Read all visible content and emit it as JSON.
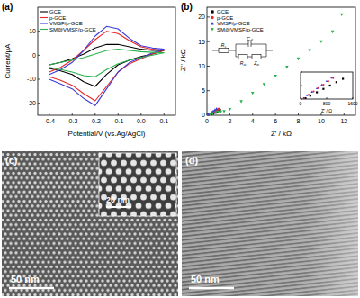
{
  "chart_data": [
    {
      "type": "line",
      "title": "(a)",
      "x_label": "Potential/V (vs.Ag/AgCl)",
      "y_label": "Current/μA",
      "x": [
        -0.4,
        -0.35,
        -0.3,
        -0.25,
        -0.2,
        -0.15,
        -0.1,
        -0.05,
        0,
        0.05,
        0.1,
        0.05,
        0,
        -0.05,
        -0.1,
        -0.15,
        -0.2,
        -0.25,
        -0.3,
        -0.35,
        -0.4
      ],
      "xlim": [
        -0.45,
        0.15
      ],
      "xticks": [
        -0.4,
        -0.3,
        -0.2,
        -0.1,
        {
          "value": 0,
          "label": "0.0"
        },
        0.1
      ],
      "ylim": [
        -25,
        20
      ],
      "yticks": [
        -20,
        -10,
        0,
        10
      ],
      "legend": "upper left",
      "series": [
        {
          "name": "GCE",
          "color": "#000000",
          "values": [
            -4,
            -3,
            -1.5,
            0.5,
            3,
            4.5,
            4.5,
            3.5,
            2.5,
            2,
            2,
            0.5,
            -0.5,
            -2,
            -4,
            -8,
            -13,
            -11,
            -8,
            -6.5,
            -5.5
          ]
        },
        {
          "name": "p-GCE",
          "color": "#e8262b",
          "values": [
            -7,
            -5,
            -2,
            2,
            6.5,
            10,
            9,
            6,
            3.5,
            2.5,
            2,
            0.5,
            -1.5,
            -3.5,
            -7,
            -13,
            -19,
            -16,
            -12.5,
            -10.5,
            -9
          ]
        },
        {
          "name": "VMSF/p-GCE",
          "color": "#3a3ad6",
          "values": [
            -8,
            -6,
            -3,
            2,
            8,
            12,
            11,
            7,
            4,
            3,
            2.5,
            1,
            -1,
            -3,
            -7,
            -14,
            -21,
            -18,
            -14,
            -12,
            -10
          ]
        },
        {
          "name": "SM@VMSF/p-GCE",
          "color": "#2bb24c",
          "values": [
            -4,
            -3,
            -2,
            -1,
            0.5,
            2,
            2.5,
            2,
            1.5,
            1.2,
            1,
            0,
            -1,
            -2,
            -3.5,
            -6,
            -9,
            -8.5,
            -7,
            -6,
            -5
          ]
        }
      ]
    },
    {
      "type": "scatter",
      "title": "(b)",
      "x_label": "Z' / kΩ",
      "y_label": "-Z'' / kΩ",
      "xlim": [
        0,
        13
      ],
      "xticks": [
        0,
        2,
        4,
        6,
        8,
        10,
        12
      ],
      "ylim": [
        0,
        22
      ],
      "yticks": [
        0,
        5,
        10,
        15,
        20
      ],
      "legend": "upper left",
      "annotations": [
        "Rs",
        "Cdl",
        "Rct",
        "Zw"
      ],
      "series": [
        {
          "name": "GCE",
          "color": "#000000",
          "marker": "square",
          "x": [
            0.15,
            0.3,
            0.5,
            0.7,
            0.9,
            1.1
          ],
          "values": [
            0.05,
            0.2,
            0.4,
            0.6,
            0.8,
            1.0
          ]
        },
        {
          "name": "p-GCE",
          "color": "#e8262b",
          "marker": "circle",
          "x": [
            0.1,
            0.25,
            0.45,
            0.65,
            0.85,
            1.05
          ],
          "values": [
            0.05,
            0.25,
            0.5,
            0.75,
            1.0,
            1.25
          ]
        },
        {
          "name": "VMSF/p-GCE",
          "color": "#3a3ad6",
          "marker": "triangle-up",
          "x": [
            0.12,
            0.25,
            0.4,
            0.55,
            0.7,
            0.85
          ],
          "values": [
            0.05,
            0.3,
            0.55,
            0.8,
            1.05,
            1.3
          ]
        },
        {
          "name": "SM@VMSF/p-GCE",
          "color": "#2bb24c",
          "marker": "triangle-down",
          "x": [
            0.3,
            0.5,
            0.8,
            1.0,
            1.2,
            1.5,
            2,
            3,
            4,
            5,
            6,
            7,
            8,
            9,
            10,
            11,
            11.8
          ],
          "values": [
            0.1,
            0.4,
            0.6,
            0.7,
            0.7,
            0.8,
            1.2,
            2.8,
            4.5,
            6.3,
            8.0,
            9.8,
            11.5,
            13.2,
            15,
            17,
            20.5
          ]
        }
      ]
    },
    {
      "type": "scatter",
      "x_label": "Z' / Ω",
      "tick_labels": "x",
      "xlim": [
        0,
        1600
      ],
      "xticks": [
        0,
        800,
        1600
      ],
      "ylim": [
        0,
        1600
      ],
      "yticks": [
        0,
        800,
        1600
      ],
      "series": [
        {
          "color": "#000000",
          "marker": "square",
          "x": [
            150,
            300,
            500,
            700,
            900,
            1100,
            1300
          ],
          "values": [
            50,
            200,
            400,
            600,
            800,
            1000,
            1200
          ]
        },
        {
          "color": "#e8262b",
          "marker": "circle",
          "x": [
            100,
            250,
            400,
            550,
            700,
            850,
            1000
          ],
          "values": [
            50,
            250,
            450,
            650,
            850,
            1050,
            1250
          ]
        },
        {
          "color": "#3a3ad6",
          "marker": "triangle-up",
          "x": [
            100,
            200,
            350,
            500,
            650,
            800,
            950
          ],
          "values": [
            50,
            220,
            430,
            640,
            850,
            1060,
            1270
          ]
        }
      ]
    }
  ],
  "images": [
    {
      "label": "(c)",
      "scale_bar": "50 nm",
      "inset_scale_bar": "20 nm"
    },
    {
      "label": "(d)",
      "scale_bar": "50 nm"
    }
  ]
}
